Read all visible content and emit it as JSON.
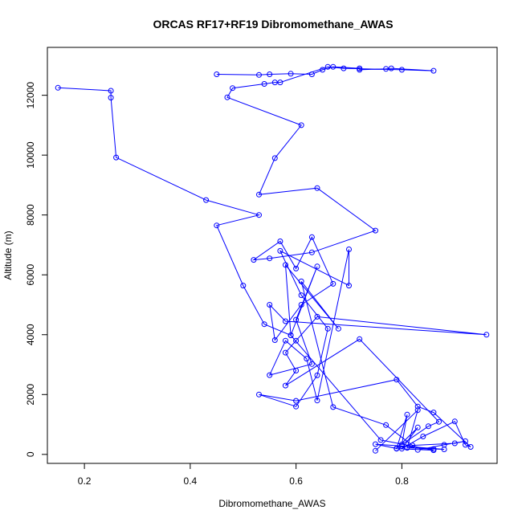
{
  "chart_data": {
    "type": "line",
    "title": "ORCAS RF17+RF19 Dibromomethane_AWAS",
    "xlabel": "Dibromomethane_AWAS",
    "ylabel": "Altitude (m)",
    "xlim": [
      0.13,
      0.98
    ],
    "ylim": [
      -300,
      13600
    ],
    "xticks": [
      0.2,
      0.4,
      0.6,
      0.8
    ],
    "xtick_labels": [
      "0.2",
      "0.4",
      "0.6",
      "0.8"
    ],
    "yticks": [
      0,
      2000,
      4000,
      6000,
      8000,
      10000,
      12000
    ],
    "ytick_labels": [
      "0",
      "2000",
      "4000",
      "6000",
      "8000",
      "10000",
      "12000"
    ],
    "grid": false,
    "line_color": "#0000ff",
    "marker": "open-circle",
    "series": [
      {
        "x": [
          0.15,
          0.25,
          0.25,
          0.26,
          0.43,
          0.53,
          0.45,
          0.5,
          0.54,
          0.59,
          0.64,
          0.6,
          0.63,
          0.55,
          0.58,
          0.62,
          0.64,
          0.7,
          0.7,
          0.57,
          0.61,
          0.66,
          0.64,
          0.6,
          0.53,
          0.6,
          0.79,
          0.83,
          0.86,
          0.93,
          0.92,
          0.9,
          0.84,
          0.8,
          0.83,
          0.79,
          0.75,
          0.8,
          0.88,
          0.86,
          0.81,
          0.83,
          0.75
        ],
        "y": [
          12250,
          12150,
          11920,
          9920,
          8500,
          8000,
          7650,
          5640,
          4350,
          3980,
          6280,
          4500,
          3020,
          2650,
          3800,
          3200,
          1800,
          6850,
          5640,
          6800,
          5320,
          4200,
          2640,
          1600,
          2000,
          1790,
          2500,
          1600,
          1400,
          250,
          320,
          1100,
          600,
          190,
          900,
          200,
          340,
          280,
          170,
          180,
          220,
          1480,
          120
        ]
      },
      {
        "x": [
          0.45,
          0.53,
          0.55,
          0.59,
          0.63,
          0.65,
          0.67,
          0.72,
          0.72,
          0.77,
          0.78,
          0.86,
          0.8,
          0.69,
          0.66,
          0.57,
          0.56,
          0.54,
          0.48,
          0.47,
          0.61,
          0.56,
          0.53,
          0.64,
          0.75,
          0.63,
          0.55,
          0.52,
          0.57,
          0.6,
          0.63,
          0.67,
          0.61,
          0.56,
          0.55,
          0.58,
          0.96,
          0.64,
          0.6,
          0.58,
          0.6,
          0.58,
          0.72,
          0.87,
          0.85,
          0.8,
          0.81,
          0.79,
          0.86,
          0.76,
          0.59,
          0.58,
          0.68,
          0.61,
          0.67,
          0.77,
          0.82,
          0.9,
          0.92,
          0.88,
          0.83
        ],
        "y": [
          12700,
          12680,
          12700,
          12720,
          12700,
          12850,
          12950,
          12900,
          12850,
          12880,
          12900,
          12820,
          12850,
          12900,
          12950,
          12430,
          12430,
          12380,
          12240,
          11930,
          11000,
          9900,
          8680,
          8900,
          7480,
          6750,
          6550,
          6500,
          7120,
          6210,
          7260,
          5700,
          5000,
          3820,
          5000,
          4450,
          4000,
          4600,
          3800,
          3400,
          2800,
          2300,
          3850,
          1090,
          940,
          330,
          1330,
          190,
          140,
          480,
          3980,
          6330,
          4200,
          5780,
          1580,
          980,
          300,
          370,
          440,
          320,
          150
        ]
      }
    ]
  }
}
